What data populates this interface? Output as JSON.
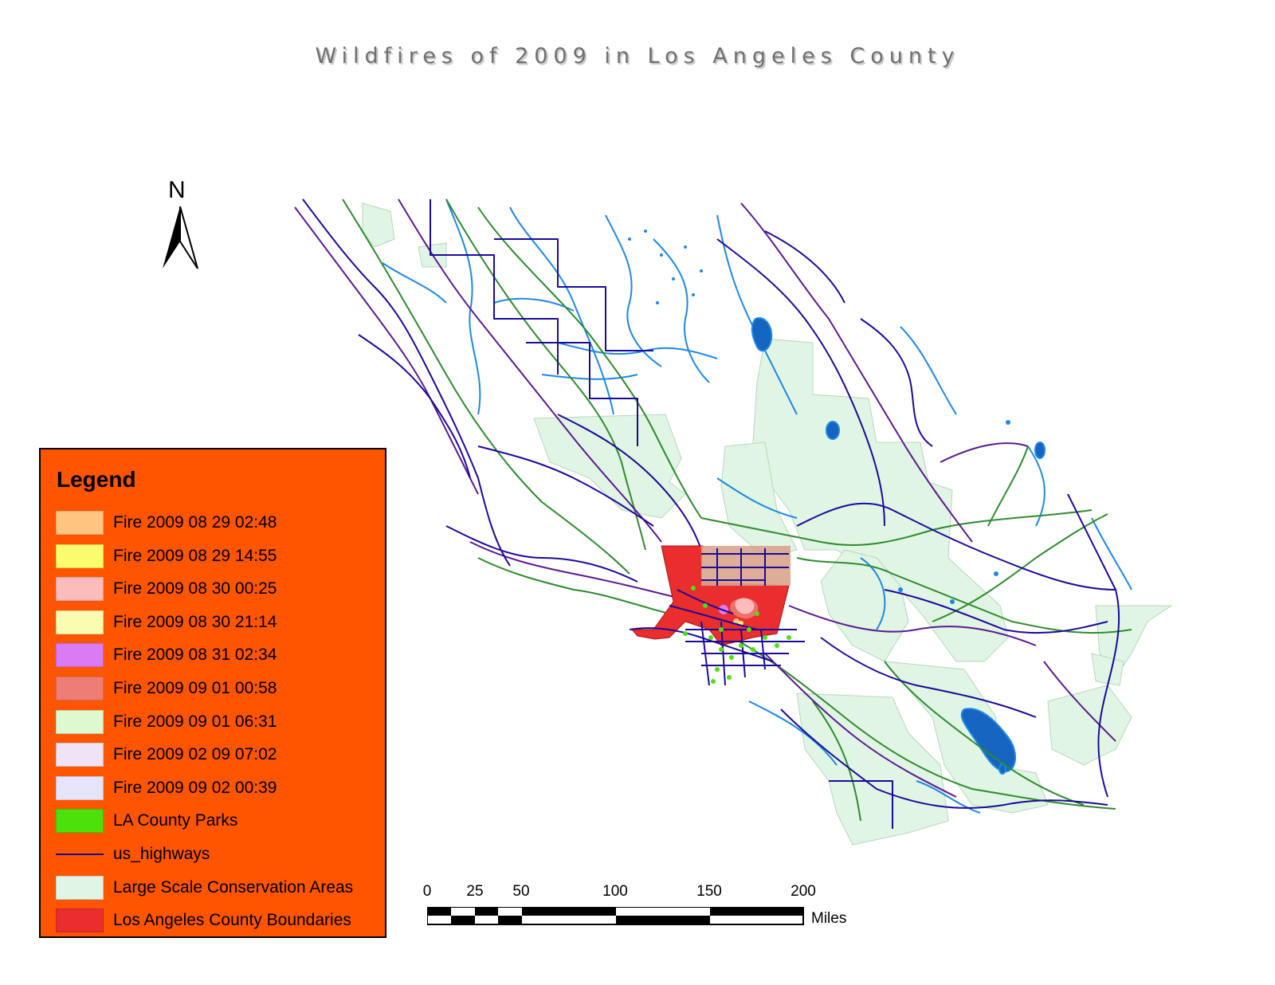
{
  "title": "Wildfires of 2009 in Los Angeles County",
  "north_arrow": {
    "label": "N"
  },
  "legend": {
    "title": "Legend",
    "items": [
      {
        "label": "Fire 2009 08 29 02:48",
        "type": "fill",
        "color": "#fdc57f"
      },
      {
        "label": "Fire 2009 08 29 14:55",
        "type": "fill",
        "color": "#fbfb6e"
      },
      {
        "label": "Fire 2009 08 30 00:25",
        "type": "fill",
        "color": "#fdbcbc"
      },
      {
        "label": "Fire 2009 08 30 21:14",
        "type": "fill",
        "color": "#fcfcb0"
      },
      {
        "label": "Fire 2009 08 31 02:34",
        "type": "fill",
        "color": "#db7bf3"
      },
      {
        "label": "Fire 2009 09 01 00:58",
        "type": "fill",
        "color": "#ee7d76"
      },
      {
        "label": "Fire 2009 09 01 06:31",
        "type": "fill",
        "color": "#def8d0"
      },
      {
        "label": "Fire 2009 02 09 07:02",
        "type": "fill",
        "color": "#efe3f6"
      },
      {
        "label": "Fire 2009 09 02 00:39",
        "type": "fill",
        "color": "#e5e4f8"
      },
      {
        "label": "LA County Parks",
        "type": "fill",
        "color": "#4ce10b"
      },
      {
        "label": "us_highways",
        "type": "line",
        "color": "#1c0a9a"
      },
      {
        "label": "Large Scale Conservation Areas",
        "type": "fill",
        "color": "#e0f5e4"
      },
      {
        "label": "Los Angeles County Boundaries",
        "type": "fill",
        "color": "#ea2d2d"
      }
    ]
  },
  "scale_bar": {
    "ticks": [
      "0",
      "25",
      "50",
      "100",
      "150",
      "200"
    ],
    "units": "Miles"
  },
  "colors": {
    "highways": "#1c0a9a",
    "state_routes": "#5c1a90",
    "rail": "#2e8b2e",
    "rivers": "#1e88e5",
    "lakes": "#1565c0",
    "conservation": "#e0f5e4",
    "county": "#ea2d2d",
    "fire_overlay": "#d9a48c",
    "parks": "#4ce10b"
  }
}
